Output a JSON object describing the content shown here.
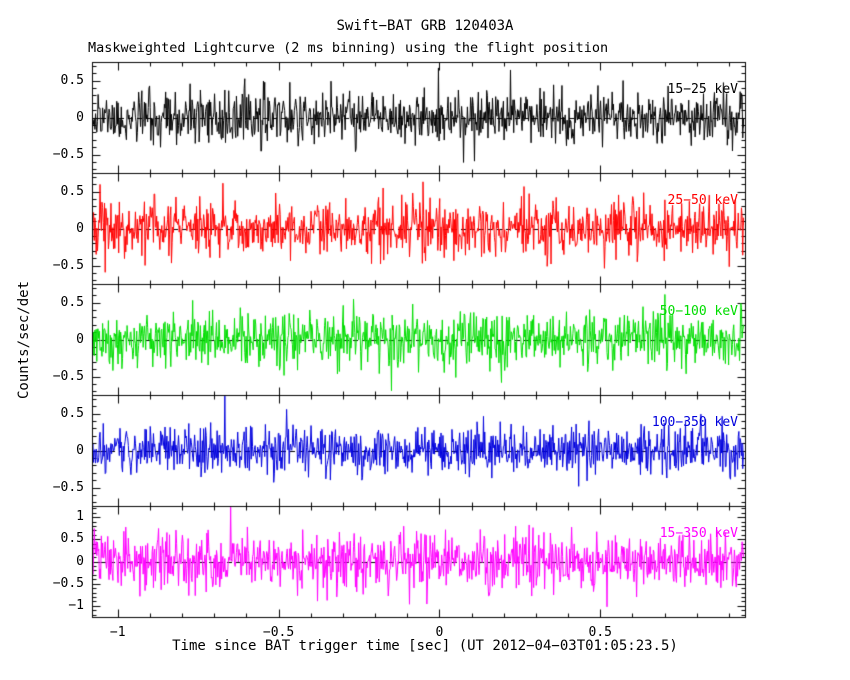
{
  "header": {
    "title": "Swift−BAT GRB 120403A",
    "subtitle": "Maskweighted Lightcurve (2 ms binning) using the flight position"
  },
  "chart_data": {
    "type": "line",
    "title": "Swift−BAT GRB 120403A",
    "subtitle": "Maskweighted Lightcurve (2 ms binning) using the flight position",
    "xlabel": "Time since BAT trigger time [sec] (UT 2012−04−03T01:05:23.5)",
    "ylabel": "Counts/sec/det",
    "xlim": [
      -1.08,
      0.95
    ],
    "bin_seconds": 0.002,
    "x_major_ticks": [
      -1,
      -0.5,
      0,
      0.5
    ],
    "x_tick_labels": [
      "−1",
      "−0.5",
      "0",
      "0.5"
    ],
    "x_minor_step": 0.1,
    "y_minor_step": 0.1,
    "grid": false,
    "zero_line": {
      "style": "dashed",
      "color": "#000000",
      "y": 0
    },
    "legend_position": "inside-right-of-each-panel",
    "panels": [
      {
        "name": "15−25 keV",
        "color": "#000000",
        "ylim": [
          -0.75,
          0.75
        ],
        "yticks": [
          0.5,
          0,
          -0.5
        ],
        "ytick_labels": [
          "0.5",
          "0",
          "−0.5"
        ],
        "noise_mean": 0,
        "noise_sigma": 0.17,
        "seed": 11
      },
      {
        "name": "25−50 keV",
        "color": "#ff0000",
        "ylim": [
          -0.75,
          0.75
        ],
        "yticks": [
          0.5,
          0,
          -0.5
        ],
        "ytick_labels": [
          "0.5",
          "0",
          "−0.5"
        ],
        "noise_mean": 0,
        "noise_sigma": 0.19,
        "seed": 22
      },
      {
        "name": "50−100 keV",
        "color": "#00dd00",
        "ylim": [
          -0.75,
          0.75
        ],
        "yticks": [
          0.5,
          0,
          -0.5
        ],
        "ytick_labels": [
          "0.5",
          "0",
          "−0.5"
        ],
        "noise_mean": 0,
        "noise_sigma": 0.19,
        "seed": 33
      },
      {
        "name": "100−350 keV",
        "color": "#0000dd",
        "ylim": [
          -0.75,
          0.75
        ],
        "yticks": [
          0.5,
          0,
          -0.5
        ],
        "ytick_labels": [
          "0.5",
          "0",
          "−0.5"
        ],
        "noise_mean": 0,
        "noise_sigma": 0.17,
        "seed": 44
      },
      {
        "name": "15−350 keV",
        "color": "#ff00ff",
        "ylim": [
          -1.25,
          1.25
        ],
        "yticks": [
          1,
          0.5,
          0,
          -0.5,
          -1
        ],
        "ytick_labels": [
          "1",
          "0.5",
          "0",
          "−0.5",
          "−1"
        ],
        "noise_mean": 0,
        "noise_sigma": 0.32,
        "seed": 55
      }
    ]
  }
}
